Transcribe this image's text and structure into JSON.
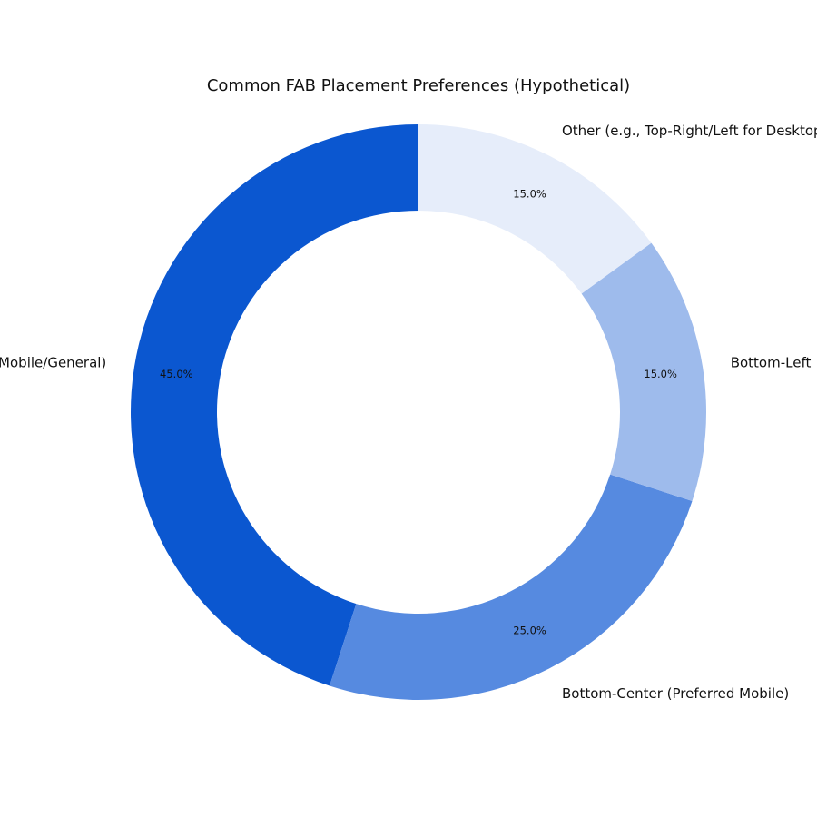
{
  "chart_data": {
    "type": "pie",
    "variant": "donut",
    "title": "Common FAB Placement Preferences (Hypothetical)",
    "categories": [
      "Bottom-Right (Standard Mobile/General)",
      "Bottom-Center (Preferred Mobile)",
      "Bottom-Left",
      "Other (e.g., Top-Right/Left for Desktop)"
    ],
    "values": [
      45,
      25,
      15,
      15
    ],
    "percent_labels": [
      "45.0%",
      "25.0%",
      "15.0%",
      "15.0%"
    ],
    "colors": [
      "#0b57d0",
      "#568ae0",
      "#9ebbec",
      "#e6edfa"
    ],
    "start_angle_deg": 90,
    "direction": "counterclockwise",
    "legend": "none"
  }
}
